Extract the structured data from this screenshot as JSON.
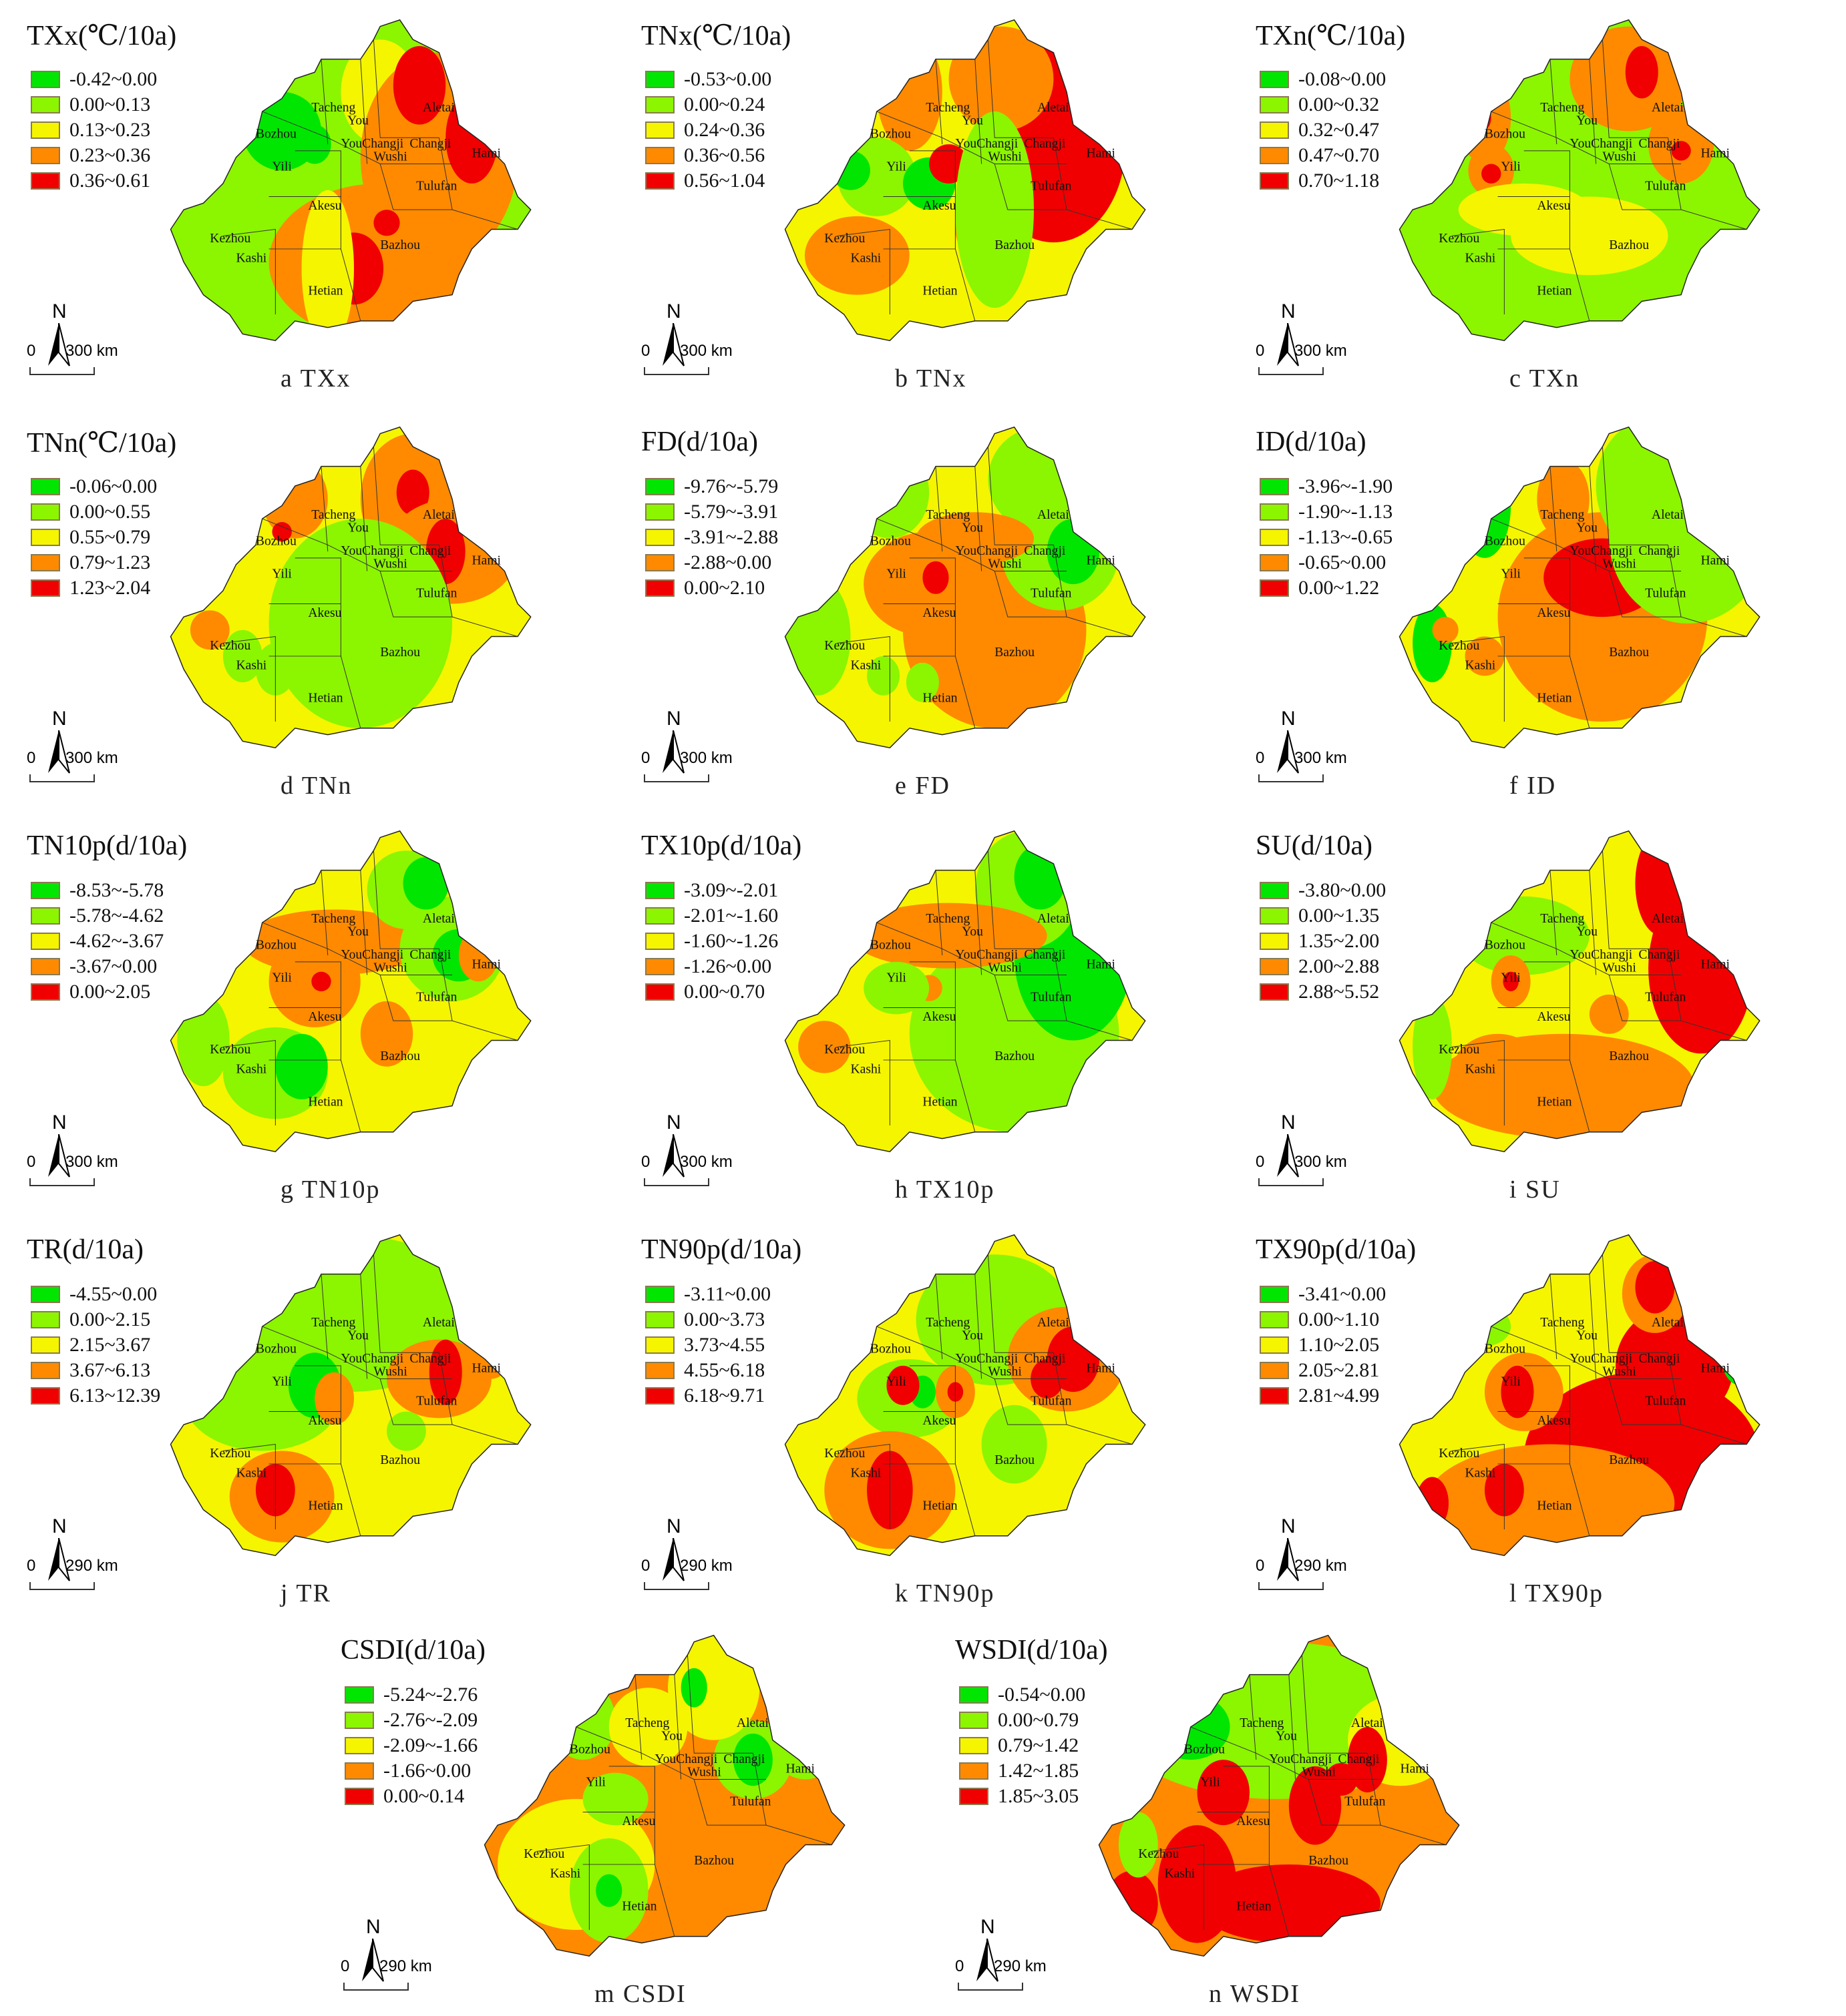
{
  "figure": {
    "colors": [
      "#00E600",
      "#8CF500",
      "#F5F500",
      "#FF8A00",
      "#F00000"
    ],
    "region_labels": [
      "Aletai",
      "Tacheng",
      "You",
      "Bozhou",
      "YouChangji",
      "Changji",
      "Wushi",
      "Yili",
      "Hami",
      "Tulufan",
      "Akesu",
      "Kezhou",
      "Kashi",
      "Bazhou",
      "Hetian"
    ]
  },
  "panels": [
    {
      "id": "a",
      "title": "TXx(℃/10a)",
      "caption": "a  TXx",
      "scale_zero": "0",
      "scale_dist": "300 km",
      "north": "N",
      "legend": [
        "-0.42~0.00",
        "0.00~0.13",
        "0.13~0.23",
        "0.23~0.36",
        "0.36~0.61"
      ]
    },
    {
      "id": "b",
      "title": "TNx(℃/10a)",
      "caption": "b  TNx",
      "scale_zero": "0",
      "scale_dist": "300 km",
      "north": "N",
      "legend": [
        "-0.53~0.00",
        "0.00~0.24",
        "0.24~0.36",
        "0.36~0.56",
        "0.56~1.04"
      ]
    },
    {
      "id": "c",
      "title": "TXn(℃/10a)",
      "caption": "c  TXn",
      "scale_zero": "0",
      "scale_dist": "300 km",
      "north": "N",
      "legend": [
        "-0.08~0.00",
        "0.00~0.32",
        "0.32~0.47",
        "0.47~0.70",
        "0.70~1.18"
      ]
    },
    {
      "id": "d",
      "title": "TNn(℃/10a)",
      "caption": "d  TNn",
      "scale_zero": "0",
      "scale_dist": "300 km",
      "north": "N",
      "legend": [
        "-0.06~0.00",
        "0.00~0.55",
        "0.55~0.79",
        "0.79~1.23",
        "1.23~2.04"
      ]
    },
    {
      "id": "e",
      "title": "FD(d/10a)",
      "caption": "e  FD",
      "scale_zero": "0",
      "scale_dist": "300 km",
      "north": "N",
      "legend": [
        "-9.76~-5.79",
        "-5.79~-3.91",
        "-3.91~-2.88",
        "-2.88~0.00",
        "0.00~2.10"
      ]
    },
    {
      "id": "f",
      "title": "ID(d/10a)",
      "caption": "f  ID",
      "scale_zero": "0",
      "scale_dist": "300 km",
      "north": "N",
      "legend": [
        "-3.96~-1.90",
        "-1.90~-1.13",
        "-1.13~-0.65",
        "-0.65~0.00",
        "0.00~1.22"
      ]
    },
    {
      "id": "g",
      "title": "TN10p(d/10a)",
      "caption": "g  TN10p",
      "scale_zero": "0",
      "scale_dist": "300 km",
      "north": "N",
      "legend": [
        "-8.53~-5.78",
        "-5.78~-4.62",
        "-4.62~-3.67",
        "-3.67~0.00",
        "0.00~2.05"
      ]
    },
    {
      "id": "h",
      "title": "TX10p(d/10a)",
      "caption": "h  TX10p",
      "scale_zero": "0",
      "scale_dist": "300 km",
      "north": "N",
      "legend": [
        "-3.09~-2.01",
        "-2.01~-1.60",
        "-1.60~-1.26",
        "-1.26~0.00",
        "0.00~0.70"
      ]
    },
    {
      "id": "i",
      "title": "SU(d/10a)",
      "caption": "i  SU",
      "scale_zero": "0",
      "scale_dist": "300 km",
      "north": "N",
      "legend": [
        "-3.80~0.00",
        "0.00~1.35",
        "1.35~2.00",
        "2.00~2.88",
        "2.88~5.52"
      ]
    },
    {
      "id": "j",
      "title": "TR(d/10a)",
      "caption": "j  TR",
      "scale_zero": "0",
      "scale_dist": "290 km",
      "north": "N",
      "legend": [
        "-4.55~0.00",
        "0.00~2.15",
        "2.15~3.67",
        "3.67~6.13",
        "6.13~12.39"
      ]
    },
    {
      "id": "k",
      "title": "TN90p(d/10a)",
      "caption": "k  TN90p",
      "scale_zero": "0",
      "scale_dist": "290 km",
      "north": "N",
      "legend": [
        "-3.11~0.00",
        "0.00~3.73",
        "3.73~4.55",
        "4.55~6.18",
        "6.18~9.71"
      ]
    },
    {
      "id": "l",
      "title": "TX90p(d/10a)",
      "caption": "l  TX90p",
      "scale_zero": "0",
      "scale_dist": "290 km",
      "north": "N",
      "legend": [
        "-3.41~0.00",
        "0.00~1.10",
        "1.10~2.05",
        "2.05~2.81",
        "2.81~4.99"
      ]
    },
    {
      "id": "m",
      "title": "CSDI(d/10a)",
      "caption": "m  CSDI",
      "scale_zero": "0",
      "scale_dist": "290 km",
      "north": "N",
      "legend": [
        "-5.24~-2.76",
        "-2.76~-2.09",
        "-2.09~-1.66",
        "-1.66~0.00",
        "0.00~0.14"
      ]
    },
    {
      "id": "n",
      "title": "WSDI(d/10a)",
      "caption": "n  WSDI",
      "scale_zero": "0",
      "scale_dist": "290 km",
      "north": "N",
      "legend": [
        "-0.54~0.00",
        "0.00~0.79",
        "0.79~1.42",
        "1.42~1.85",
        "1.85~3.05"
      ]
    }
  ],
  "chart_data": [
    {
      "type": "heatmap",
      "title": "TXx(℃/10a)",
      "caption": "a TXx",
      "classes": [
        "-0.42~0.00",
        "0.00~0.13",
        "0.13~0.23",
        "0.23~0.36",
        "0.36~0.61"
      ],
      "dominant": {
        "north_west": "0.00~0.13",
        "east_Hami": "0.36~0.61",
        "Bazhou": "0.23~0.36"
      }
    },
    {
      "type": "heatmap",
      "title": "TNx(℃/10a)",
      "caption": "b TNx",
      "classes": [
        "-0.53~0.00",
        "0.00~0.24",
        "0.24~0.36",
        "0.36~0.56",
        "0.56~1.04"
      ],
      "dominant": {
        "Hami_Aletai_east": "0.56~1.04",
        "central": "0.24~0.36"
      }
    },
    {
      "type": "heatmap",
      "title": "TXn(℃/10a)",
      "caption": "c TXn",
      "classes": [
        "-0.08~0.00",
        "0.00~0.32",
        "0.32~0.47",
        "0.47~0.70",
        "0.70~1.18"
      ],
      "dominant": {
        "south": "0.00~0.32",
        "Aletai": "0.70~1.18"
      }
    },
    {
      "type": "heatmap",
      "title": "TNn(℃/10a)",
      "caption": "d TNn",
      "classes": [
        "-0.06~0.00",
        "0.00~0.55",
        "0.55~0.79",
        "0.79~1.23",
        "1.23~2.04"
      ],
      "dominant": {
        "Bazhou": "0.00~0.55",
        "Tulufan": "1.23~2.04"
      }
    },
    {
      "type": "heatmap",
      "title": "FD(d/10a)",
      "caption": "e FD",
      "classes": [
        "-9.76~-5.79",
        "-5.79~-3.91",
        "-3.91~-2.88",
        "-2.88~0.00",
        "0.00~2.10"
      ],
      "dominant": {
        "Bazhou": "-2.88~0.00",
        "Hami": "-9.76~-5.79"
      }
    },
    {
      "type": "heatmap",
      "title": "ID(d/10a)",
      "caption": "f ID",
      "classes": [
        "-3.96~-1.90",
        "-1.90~-1.13",
        "-1.13~-0.65",
        "-0.65~0.00",
        "0.00~1.22"
      ],
      "dominant": {
        "Bazhou_north": "0.00~1.22",
        "Hami": "-1.90~-1.13"
      }
    },
    {
      "type": "heatmap",
      "title": "TN10p(d/10a)",
      "caption": "g TN10p",
      "classes": [
        "-8.53~-5.78",
        "-5.78~-4.62",
        "-4.62~-3.67",
        "-3.67~0.00",
        "0.00~2.05"
      ],
      "dominant": {
        "Bazhou": "-4.62~-3.67",
        "Hetian": "-5.78~-4.62"
      }
    },
    {
      "type": "heatmap",
      "title": "TX10p(d/10a)",
      "caption": "h TX10p",
      "classes": [
        "-3.09~-2.01",
        "-2.01~-1.60",
        "-1.60~-1.26",
        "-1.26~0.00",
        "0.00~0.70"
      ],
      "dominant": {
        "Bazhou": "-2.01~-1.60",
        "Hami": "-3.09~-2.01"
      }
    },
    {
      "type": "heatmap",
      "title": "SU(d/10a)",
      "caption": "i SU",
      "classes": [
        "-3.80~0.00",
        "0.00~1.35",
        "1.35~2.00",
        "2.00~2.88",
        "2.88~5.52"
      ],
      "dominant": {
        "Hami": "2.88~5.52",
        "south": "2.00~2.88"
      }
    },
    {
      "type": "heatmap",
      "title": "TR(d/10a)",
      "caption": "j TR",
      "classes": [
        "-4.55~0.00",
        "0.00~2.15",
        "2.15~3.67",
        "3.67~6.13",
        "6.13~12.39"
      ],
      "dominant": {
        "north": "0.00~2.15",
        "Bazhou": "2.15~3.67"
      }
    },
    {
      "type": "heatmap",
      "title": "TN90p(d/10a)",
      "caption": "k TN90p",
      "classes": [
        "-3.11~0.00",
        "0.00~3.73",
        "3.73~4.55",
        "4.55~6.18",
        "6.18~9.71"
      ],
      "dominant": {
        "Bazhou": "3.73~4.55",
        "Hetian": "4.55~6.18"
      }
    },
    {
      "type": "heatmap",
      "title": "TX90p(d/10a)",
      "caption": "l TX90p",
      "classes": [
        "-3.41~0.00",
        "0.00~1.10",
        "1.10~2.05",
        "2.05~2.81",
        "2.81~4.99"
      ],
      "dominant": {
        "Bazhou": "2.81~4.99",
        "north": "1.10~2.05"
      }
    },
    {
      "type": "heatmap",
      "title": "CSDI(d/10a)",
      "caption": "m CSDI",
      "classes": [
        "-5.24~-2.76",
        "-2.76~-2.09",
        "-2.09~-1.66",
        "-1.66~0.00",
        "0.00~0.14"
      ],
      "dominant": {
        "Bazhou": "-1.66~0.00",
        "Kashi": "-2.09~-1.66"
      }
    },
    {
      "type": "heatmap",
      "title": "WSDI(d/10a)",
      "caption": "n WSDI",
      "classes": [
        "-0.54~0.00",
        "0.00~0.79",
        "0.79~1.42",
        "1.42~1.85",
        "1.85~3.05"
      ],
      "dominant": {
        "north": "0.00~0.79",
        "south": "1.85~3.05"
      }
    }
  ]
}
